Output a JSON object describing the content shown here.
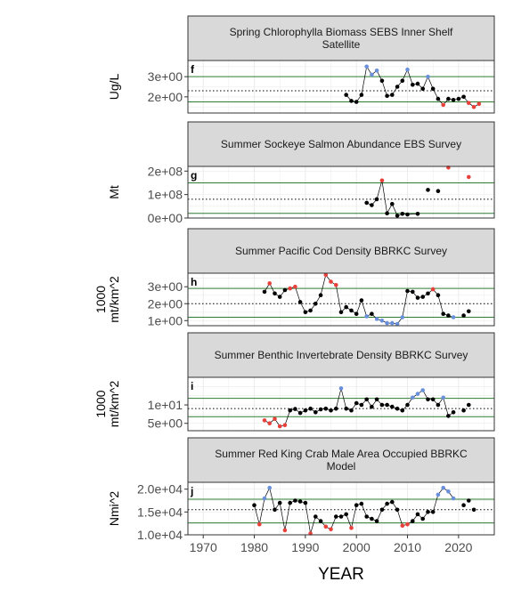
{
  "colors": {
    "normal": "#000000",
    "high": "#6a8fdb",
    "low": "#e8403a",
    "mean_line": "#000000",
    "sd_line": "#2e7d32",
    "strip": "#d9d9d9"
  },
  "x_axis": {
    "label": "YEAR",
    "range": [
      1967,
      2027
    ],
    "ticks": [
      1970,
      1980,
      1990,
      2000,
      2010,
      2020
    ]
  },
  "chart_data": [
    {
      "type": "line",
      "panel_label": "f",
      "title": "Spring Chlorophylla Biomass SEBS Inner Shelf Satellite",
      "title_lines": [
        "Spring Chlorophylla Biomass SEBS Inner Shelf",
        "Satellite"
      ],
      "ylabel_lines": [
        "Ug/L"
      ],
      "ylim": [
        1.2,
        3.8
      ],
      "yticks": [
        2,
        3
      ],
      "ytick_labels": [
        "2e+00",
        "3e+00"
      ],
      "mean": 2.3,
      "sd_upper": 3.0,
      "sd_lower": 1.75,
      "points": [
        {
          "x": 1998,
          "y": 2.1,
          "s": "n"
        },
        {
          "x": 1999,
          "y": 1.8,
          "s": "n"
        },
        {
          "x": 2000,
          "y": 1.75,
          "s": "n"
        },
        {
          "x": 2001,
          "y": 2.1,
          "s": "n"
        },
        {
          "x": 2002,
          "y": 3.5,
          "s": "h"
        },
        {
          "x": 2003,
          "y": 3.1,
          "s": "h"
        },
        {
          "x": 2004,
          "y": 3.3,
          "s": "h"
        },
        {
          "x": 2005,
          "y": 2.8,
          "s": "n"
        },
        {
          "x": 2006,
          "y": 2.05,
          "s": "n"
        },
        {
          "x": 2007,
          "y": 2.1,
          "s": "n"
        },
        {
          "x": 2008,
          "y": 2.5,
          "s": "n"
        },
        {
          "x": 2009,
          "y": 2.8,
          "s": "n"
        },
        {
          "x": 2010,
          "y": 3.35,
          "s": "h"
        },
        {
          "x": 2011,
          "y": 2.6,
          "s": "n"
        },
        {
          "x": 2012,
          "y": 2.65,
          "s": "n"
        },
        {
          "x": 2013,
          "y": 2.4,
          "s": "n"
        },
        {
          "x": 2014,
          "y": 3.0,
          "s": "h"
        },
        {
          "x": 2015,
          "y": 2.4,
          "s": "n"
        },
        {
          "x": 2016,
          "y": 1.9,
          "s": "n"
        },
        {
          "x": 2017,
          "y": 1.6,
          "s": "l"
        },
        {
          "x": 2018,
          "y": 1.9,
          "s": "n"
        },
        {
          "x": 2019,
          "y": 1.85,
          "s": "n"
        },
        {
          "x": 2020,
          "y": 1.9,
          "s": "n"
        },
        {
          "x": 2021,
          "y": 2.0,
          "s": "n"
        },
        {
          "x": 2022,
          "y": 1.7,
          "s": "l"
        },
        {
          "x": 2023,
          "y": 1.5,
          "s": "l"
        },
        {
          "x": 2024,
          "y": 1.65,
          "s": "l"
        }
      ]
    },
    {
      "type": "line",
      "panel_label": "g",
      "title": "Summer Sockeye Salmon Abundance EBS Survey",
      "title_lines": [
        "Summer Sockeye Salmon Abundance EBS Survey"
      ],
      "ylabel_lines": [
        "Mt"
      ],
      "ylim": [
        0,
        220000000
      ],
      "yticks": [
        0,
        100000000,
        200000000
      ],
      "ytick_labels": [
        "0e+00",
        "1e+08",
        "2e+08"
      ],
      "mean": 80000000,
      "sd_upper": 150000000,
      "sd_lower": 20000000,
      "points": [
        {
          "x": 2002,
          "y": 65000000,
          "s": "n"
        },
        {
          "x": 2003,
          "y": 55000000,
          "s": "n"
        },
        {
          "x": 2004,
          "y": 80000000,
          "s": "n"
        },
        {
          "x": 2005,
          "y": 160000000,
          "s": "l"
        },
        {
          "x": 2006,
          "y": 20000000,
          "s": "n"
        },
        {
          "x": 2007,
          "y": 60000000,
          "s": "n"
        },
        {
          "x": 2008,
          "y": 10000000,
          "s": "n"
        },
        {
          "x": 2009,
          "y": 18000000,
          "s": "n"
        },
        {
          "x": 2010,
          "y": 15000000,
          "s": "n"
        },
        {
          "x": 2012,
          "y": 18000000,
          "s": "n"
        },
        {
          "x": 2014,
          "y": 120000000,
          "s": "n"
        },
        {
          "x": 2016,
          "y": 115000000,
          "s": "n"
        },
        {
          "x": 2018,
          "y": 215000000,
          "s": "l"
        },
        {
          "x": 2022,
          "y": 175000000,
          "s": "l"
        }
      ],
      "line_years": [
        2002,
        2012
      ]
    },
    {
      "type": "line",
      "panel_label": "h",
      "title": "Summer Pacific Cod Density BBRKC Survey",
      "title_lines": [
        "Summer Pacific Cod Density BBRKC Survey"
      ],
      "ylabel_lines": [
        "1000",
        "mt/km^2"
      ],
      "ylim": [
        0.7,
        3.8
      ],
      "yticks": [
        1,
        2,
        3
      ],
      "ytick_labels": [
        "1e+00",
        "2e+00",
        "3e+00"
      ],
      "mean": 2.0,
      "sd_upper": 2.9,
      "sd_lower": 1.2,
      "points": [
        {
          "x": 1982,
          "y": 2.7,
          "s": "n"
        },
        {
          "x": 1983,
          "y": 3.2,
          "s": "l"
        },
        {
          "x": 1984,
          "y": 2.6,
          "s": "n"
        },
        {
          "x": 1985,
          "y": 2.4,
          "s": "n"
        },
        {
          "x": 1986,
          "y": 2.8,
          "s": "n"
        },
        {
          "x": 1987,
          "y": 2.9,
          "s": "l"
        },
        {
          "x": 1988,
          "y": 3.0,
          "s": "l"
        },
        {
          "x": 1989,
          "y": 2.1,
          "s": "n"
        },
        {
          "x": 1990,
          "y": 1.5,
          "s": "n"
        },
        {
          "x": 1991,
          "y": 1.6,
          "s": "n"
        },
        {
          "x": 1992,
          "y": 2.0,
          "s": "n"
        },
        {
          "x": 1993,
          "y": 2.5,
          "s": "n"
        },
        {
          "x": 1994,
          "y": 3.7,
          "s": "l"
        },
        {
          "x": 1995,
          "y": 3.3,
          "s": "l"
        },
        {
          "x": 1996,
          "y": 3.1,
          "s": "l"
        },
        {
          "x": 1997,
          "y": 1.5,
          "s": "n"
        },
        {
          "x": 1998,
          "y": 1.8,
          "s": "n"
        },
        {
          "x": 1999,
          "y": 1.6,
          "s": "n"
        },
        {
          "x": 2000,
          "y": 1.4,
          "s": "n"
        },
        {
          "x": 2001,
          "y": 2.2,
          "s": "n"
        },
        {
          "x": 2002,
          "y": 1.25,
          "s": "h"
        },
        {
          "x": 2003,
          "y": 1.4,
          "s": "n"
        },
        {
          "x": 2004,
          "y": 1.1,
          "s": "h"
        },
        {
          "x": 2005,
          "y": 1.0,
          "s": "h"
        },
        {
          "x": 2006,
          "y": 0.85,
          "s": "h"
        },
        {
          "x": 2007,
          "y": 0.85,
          "s": "h"
        },
        {
          "x": 2008,
          "y": 0.8,
          "s": "h"
        },
        {
          "x": 2009,
          "y": 1.2,
          "s": "h"
        },
        {
          "x": 2010,
          "y": 2.75,
          "s": "n"
        },
        {
          "x": 2011,
          "y": 2.7,
          "s": "n"
        },
        {
          "x": 2012,
          "y": 2.35,
          "s": "n"
        },
        {
          "x": 2013,
          "y": 2.4,
          "s": "n"
        },
        {
          "x": 2014,
          "y": 2.6,
          "s": "n"
        },
        {
          "x": 2015,
          "y": 2.85,
          "s": "l"
        },
        {
          "x": 2016,
          "y": 2.5,
          "s": "n"
        },
        {
          "x": 2017,
          "y": 1.4,
          "s": "n"
        },
        {
          "x": 2018,
          "y": 1.3,
          "s": "n"
        },
        {
          "x": 2019,
          "y": 1.2,
          "s": "h"
        },
        {
          "x": 2021,
          "y": 1.3,
          "s": "n"
        },
        {
          "x": 2022,
          "y": 1.55,
          "s": "n"
        }
      ],
      "line_years": [
        1982,
        2019
      ]
    },
    {
      "type": "line",
      "panel_label": "i",
      "title": "Summer Benthic Invertebrate Density BBRKC Survey",
      "title_lines": [
        "Summer Benthic Invertebrate Density BBRKC Survey"
      ],
      "ylabel_lines": [
        "1000",
        "mt/km^2"
      ],
      "ylim": [
        3.0,
        17.5
      ],
      "yticks": [
        5,
        10
      ],
      "ytick_labels": [
        "5e+00",
        "1e+01"
      ],
      "mean": 9.0,
      "sd_upper": 11.8,
      "sd_lower": 6.8,
      "points": [
        {
          "x": 1982,
          "y": 5.8,
          "s": "l"
        },
        {
          "x": 1983,
          "y": 5.0,
          "s": "l"
        },
        {
          "x": 1984,
          "y": 6.2,
          "s": "l"
        },
        {
          "x": 1985,
          "y": 4.2,
          "s": "l"
        },
        {
          "x": 1986,
          "y": 4.5,
          "s": "l"
        },
        {
          "x": 1987,
          "y": 8.5,
          "s": "n"
        },
        {
          "x": 1988,
          "y": 8.9,
          "s": "n"
        },
        {
          "x": 1989,
          "y": 7.8,
          "s": "n"
        },
        {
          "x": 1990,
          "y": 8.5,
          "s": "n"
        },
        {
          "x": 1991,
          "y": 9.0,
          "s": "n"
        },
        {
          "x": 1992,
          "y": 8.0,
          "s": "n"
        },
        {
          "x": 1993,
          "y": 8.8,
          "s": "n"
        },
        {
          "x": 1994,
          "y": 9.0,
          "s": "n"
        },
        {
          "x": 1995,
          "y": 8.5,
          "s": "n"
        },
        {
          "x": 1996,
          "y": 9.0,
          "s": "n"
        },
        {
          "x": 1997,
          "y": 14.5,
          "s": "h"
        },
        {
          "x": 1998,
          "y": 9.0,
          "s": "n"
        },
        {
          "x": 1999,
          "y": 8.5,
          "s": "n"
        },
        {
          "x": 2000,
          "y": 10.5,
          "s": "n"
        },
        {
          "x": 2001,
          "y": 10.0,
          "s": "n"
        },
        {
          "x": 2002,
          "y": 11.5,
          "s": "n"
        },
        {
          "x": 2003,
          "y": 9.5,
          "s": "n"
        },
        {
          "x": 2004,
          "y": 11.5,
          "s": "n"
        },
        {
          "x": 2005,
          "y": 10.0,
          "s": "n"
        },
        {
          "x": 2006,
          "y": 10.0,
          "s": "n"
        },
        {
          "x": 2007,
          "y": 9.5,
          "s": "n"
        },
        {
          "x": 2008,
          "y": 9.0,
          "s": "n"
        },
        {
          "x": 2009,
          "y": 8.5,
          "s": "n"
        },
        {
          "x": 2010,
          "y": 10.0,
          "s": "n"
        },
        {
          "x": 2011,
          "y": 12.0,
          "s": "h"
        },
        {
          "x": 2012,
          "y": 13.0,
          "s": "h"
        },
        {
          "x": 2013,
          "y": 14.0,
          "s": "h"
        },
        {
          "x": 2014,
          "y": 11.5,
          "s": "n"
        },
        {
          "x": 2015,
          "y": 11.5,
          "s": "n"
        },
        {
          "x": 2016,
          "y": 10.0,
          "s": "n"
        },
        {
          "x": 2017,
          "y": 12.0,
          "s": "h"
        },
        {
          "x": 2018,
          "y": 7.0,
          "s": "n"
        },
        {
          "x": 2019,
          "y": 8.0,
          "s": "n"
        },
        {
          "x": 2021,
          "y": 8.5,
          "s": "n"
        },
        {
          "x": 2022,
          "y": 10.0,
          "s": "n"
        }
      ],
      "line_years": [
        1982,
        2019
      ]
    },
    {
      "type": "line",
      "panel_label": "j",
      "title": "Summer Red King Crab Male Area Occupied BBRKC Model",
      "title_lines": [
        "Summer Red King Crab Male Area Occupied BBRKC",
        "Model"
      ],
      "ylabel_lines": [
        "Nmi^2"
      ],
      "ylim": [
        10000,
        21500
      ],
      "yticks": [
        10000,
        15000,
        20000
      ],
      "ytick_labels": [
        "1.0e+04",
        "1.5e+04",
        "2.0e+04"
      ],
      "mean": 15500,
      "sd_upper": 17800,
      "sd_lower": 12600,
      "points": [
        {
          "x": 1980,
          "y": 16500,
          "s": "n"
        },
        {
          "x": 1981,
          "y": 12300,
          "s": "l"
        },
        {
          "x": 1982,
          "y": 18000,
          "s": "h"
        },
        {
          "x": 1983,
          "y": 20300,
          "s": "h"
        },
        {
          "x": 1984,
          "y": 15500,
          "s": "n"
        },
        {
          "x": 1985,
          "y": 17000,
          "s": "n"
        },
        {
          "x": 1986,
          "y": 11000,
          "s": "l"
        },
        {
          "x": 1987,
          "y": 17000,
          "s": "n"
        },
        {
          "x": 1988,
          "y": 17500,
          "s": "n"
        },
        {
          "x": 1989,
          "y": 17300,
          "s": "n"
        },
        {
          "x": 1990,
          "y": 17000,
          "s": "n"
        },
        {
          "x": 1991,
          "y": 10300,
          "s": "l"
        },
        {
          "x": 1992,
          "y": 14000,
          "s": "n"
        },
        {
          "x": 1993,
          "y": 13000,
          "s": "n"
        },
        {
          "x": 1994,
          "y": 11800,
          "s": "l"
        },
        {
          "x": 1995,
          "y": 11200,
          "s": "l"
        },
        {
          "x": 1996,
          "y": 14000,
          "s": "n"
        },
        {
          "x": 1997,
          "y": 14000,
          "s": "n"
        },
        {
          "x": 1998,
          "y": 14500,
          "s": "n"
        },
        {
          "x": 1999,
          "y": 11500,
          "s": "l"
        },
        {
          "x": 2000,
          "y": 16500,
          "s": "n"
        },
        {
          "x": 2001,
          "y": 16800,
          "s": "n"
        },
        {
          "x": 2002,
          "y": 14000,
          "s": "n"
        },
        {
          "x": 2003,
          "y": 13500,
          "s": "n"
        },
        {
          "x": 2004,
          "y": 13000,
          "s": "n"
        },
        {
          "x": 2005,
          "y": 15500,
          "s": "n"
        },
        {
          "x": 2006,
          "y": 16800,
          "s": "n"
        },
        {
          "x": 2007,
          "y": 17200,
          "s": "n"
        },
        {
          "x": 2008,
          "y": 15500,
          "s": "n"
        },
        {
          "x": 2009,
          "y": 12000,
          "s": "l"
        },
        {
          "x": 2010,
          "y": 12300,
          "s": "l"
        },
        {
          "x": 2011,
          "y": 13000,
          "s": "n"
        },
        {
          "x": 2012,
          "y": 14500,
          "s": "n"
        },
        {
          "x": 2013,
          "y": 13500,
          "s": "n"
        },
        {
          "x": 2014,
          "y": 15000,
          "s": "n"
        },
        {
          "x": 2015,
          "y": 15000,
          "s": "n"
        },
        {
          "x": 2016,
          "y": 18800,
          "s": "h"
        },
        {
          "x": 2017,
          "y": 20300,
          "s": "h"
        },
        {
          "x": 2018,
          "y": 19500,
          "s": "h"
        },
        {
          "x": 2019,
          "y": 18000,
          "s": "h"
        },
        {
          "x": 2021,
          "y": 16500,
          "s": "n"
        },
        {
          "x": 2022,
          "y": 17500,
          "s": "n"
        },
        {
          "x": 2023,
          "y": 15500,
          "s": "n"
        }
      ],
      "line_years": [
        1980,
        2019
      ]
    }
  ]
}
